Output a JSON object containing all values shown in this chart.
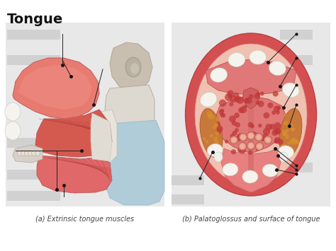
{
  "title": "Tongue",
  "title_fontsize": 14,
  "title_fontweight": "bold",
  "bg_color": "#ffffff",
  "panel_a_label": "(a) Extrinsic tongue muscles",
  "panel_b_label": "(b) Palatoglossus and surface of tongue",
  "label_fontsize": 7,
  "fig_width": 4.74,
  "fig_height": 3.55,
  "dpi": 100,
  "dot_color": "#111111",
  "dot_size": 2.5,
  "line_color": "#222222",
  "line_width": 0.7,
  "panel_bg": "#e8e8e8",
  "tongue_pink": "#e87b70",
  "tongue_dark": "#d45a50",
  "muscle_stripe": "#c04848",
  "bone_color": "#c8bfb0",
  "bone_light": "#ddd8d0",
  "throat_blue": "#b0ccd8",
  "white_tissue": "#f0eeec",
  "hyoid_color": "#d8d0c8",
  "lip_red": "#d45050",
  "oral_pink": "#f0c0b0",
  "tongue_surf_pink": "#e07878",
  "papilla_red": "#c03838",
  "circ_papilla": "#d08070",
  "orange_brown": "#c8783a",
  "uvula_pink": "#d06060",
  "teeth_white": "#f5f3ee",
  "mid_line": "#e09090"
}
